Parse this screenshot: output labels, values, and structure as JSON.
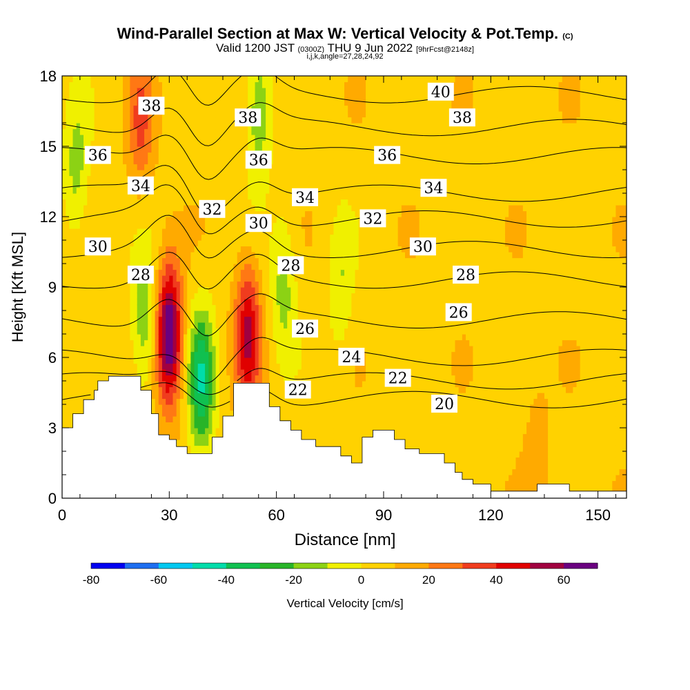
{
  "title": {
    "main": "Wind-Parallel Section at Max W: Vertical Velocity & Pot.Temp.",
    "main_tag": "(C)",
    "sub_pre": "Valid 1200 JST",
    "sub_utc": "(0300Z)",
    "sub_date": "THU 9 Jun 2022",
    "sub_fcst": "[9hrFcst@2148z]",
    "indices": "i,j,k,angle=27,28,24,92"
  },
  "chart_data": {
    "type": "heatmap",
    "xlabel": "Distance [nm]",
    "ylabel": "Height [Kft MSL]",
    "xlim": [
      0,
      158
    ],
    "ylim": [
      0,
      18
    ],
    "xticks": [
      0,
      30,
      60,
      90,
      120,
      150
    ],
    "yticks": [
      0,
      3,
      6,
      9,
      12,
      15,
      18
    ],
    "colorbar": {
      "label": "Vertical Velocity [cm/s]",
      "ticks": [
        -80,
        -60,
        -40,
        -20,
        0,
        20,
        40,
        60
      ],
      "levels": [
        -80,
        -70,
        -60,
        -50,
        -40,
        -30,
        -20,
        -10,
        0,
        10,
        20,
        30,
        40,
        50,
        60,
        70
      ],
      "colors": [
        "#0000f0",
        "#1e6ef0",
        "#00c8f0",
        "#00dcaa",
        "#10c050",
        "#28b428",
        "#8cd214",
        "#f0f000",
        "#ffd200",
        "#ffaa00",
        "#ff7814",
        "#f03c1e",
        "#e00000",
        "#a00040",
        "#6a0080"
      ]
    },
    "velocity_features": [
      {
        "x": 30,
        "z": 7.0,
        "w": 65
      },
      {
        "x": 39,
        "z": 5.0,
        "w": -45
      },
      {
        "x": 23,
        "z": 7.5,
        "w": -25
      },
      {
        "x": 52,
        "z": 7.0,
        "w": 45
      },
      {
        "x": 62,
        "z": 9.0,
        "w": -20
      },
      {
        "x": 4,
        "z": 14.0,
        "w": -20
      },
      {
        "x": 22,
        "z": 16.0,
        "w": 25
      },
      {
        "x": 55,
        "z": 16.5,
        "w": -25
      },
      {
        "x": 78,
        "z": 9.0,
        "w": -15
      },
      {
        "x": 133,
        "z": 2.0,
        "w": 10
      }
    ],
    "theta_contours": [
      {
        "value": 20,
        "base_z": 4.2
      },
      {
        "value": 22,
        "base_z": 5.0
      },
      {
        "value": 24,
        "base_z": 6.0
      },
      {
        "value": 26,
        "base_z": 7.6
      },
      {
        "value": 28,
        "base_z": 9.3
      },
      {
        "value": 30,
        "base_z": 10.6
      },
      {
        "value": 32,
        "base_z": 11.9
      },
      {
        "value": 34,
        "base_z": 13.0
      },
      {
        "value": 36,
        "base_z": 14.6
      },
      {
        "value": 38,
        "base_z": 15.8
      },
      {
        "value": 40,
        "base_z": 17.2
      }
    ],
    "contour_labels": [
      {
        "text": "38",
        "x": 25,
        "z": 16.7
      },
      {
        "text": "38",
        "x": 52,
        "z": 16.2
      },
      {
        "text": "40",
        "x": 106,
        "z": 17.3
      },
      {
        "text": "38",
        "x": 112,
        "z": 16.2
      },
      {
        "text": "36",
        "x": 10,
        "z": 14.6
      },
      {
        "text": "36",
        "x": 55,
        "z": 14.4
      },
      {
        "text": "36",
        "x": 91,
        "z": 14.6
      },
      {
        "text": "34",
        "x": 22,
        "z": 13.3
      },
      {
        "text": "34",
        "x": 68,
        "z": 12.8
      },
      {
        "text": "34",
        "x": 104,
        "z": 13.2
      },
      {
        "text": "32",
        "x": 42,
        "z": 12.3
      },
      {
        "text": "32",
        "x": 87,
        "z": 11.9
      },
      {
        "text": "30",
        "x": 55,
        "z": 11.7
      },
      {
        "text": "30",
        "x": 10,
        "z": 10.7
      },
      {
        "text": "30",
        "x": 101,
        "z": 10.7
      },
      {
        "text": "28",
        "x": 22,
        "z": 9.5
      },
      {
        "text": "28",
        "x": 64,
        "z": 9.9
      },
      {
        "text": "28",
        "x": 113,
        "z": 9.5
      },
      {
        "text": "26",
        "x": 68,
        "z": 7.2
      },
      {
        "text": "26",
        "x": 111,
        "z": 7.9
      },
      {
        "text": "24",
        "x": 81,
        "z": 6.0
      },
      {
        "text": "22",
        "x": 66,
        "z": 4.6
      },
      {
        "text": "22",
        "x": 94,
        "z": 5.1
      },
      {
        "text": "20",
        "x": 107,
        "z": 4.0
      }
    ],
    "terrain": [
      [
        0,
        3.0
      ],
      [
        3,
        3.0
      ],
      [
        3,
        3.6
      ],
      [
        6,
        3.6
      ],
      [
        6,
        4.2
      ],
      [
        9,
        4.2
      ],
      [
        9,
        4.6
      ],
      [
        10,
        4.6
      ],
      [
        10,
        5.0
      ],
      [
        13,
        5.0
      ],
      [
        13,
        5.2
      ],
      [
        22,
        5.2
      ],
      [
        22,
        4.6
      ],
      [
        25,
        4.6
      ],
      [
        25,
        3.6
      ],
      [
        27,
        3.6
      ],
      [
        27,
        2.7
      ],
      [
        30,
        2.7
      ],
      [
        30,
        2.5
      ],
      [
        32,
        2.5
      ],
      [
        32,
        2.2
      ],
      [
        35,
        2.2
      ],
      [
        35,
        1.9
      ],
      [
        42,
        1.9
      ],
      [
        42,
        2.6
      ],
      [
        45,
        2.6
      ],
      [
        45,
        3.5
      ],
      [
        48,
        3.5
      ],
      [
        48,
        4.9
      ],
      [
        58,
        4.9
      ],
      [
        58,
        3.9
      ],
      [
        61,
        3.9
      ],
      [
        61,
        3.3
      ],
      [
        64,
        3.3
      ],
      [
        64,
        2.9
      ],
      [
        67,
        2.9
      ],
      [
        67,
        2.5
      ],
      [
        71,
        2.5
      ],
      [
        71,
        2.2
      ],
      [
        78,
        2.2
      ],
      [
        78,
        1.8
      ],
      [
        81,
        1.8
      ],
      [
        81,
        1.5
      ],
      [
        84,
        1.5
      ],
      [
        84,
        2.6
      ],
      [
        87,
        2.6
      ],
      [
        87,
        2.9
      ],
      [
        93,
        2.9
      ],
      [
        93,
        2.5
      ],
      [
        96,
        2.5
      ],
      [
        96,
        2.1
      ],
      [
        100,
        2.1
      ],
      [
        100,
        1.9
      ],
      [
        107,
        1.9
      ],
      [
        107,
        1.5
      ],
      [
        110,
        1.5
      ],
      [
        110,
        1.1
      ],
      [
        112,
        1.1
      ],
      [
        112,
        0.8
      ],
      [
        115,
        0.8
      ],
      [
        115,
        0.6
      ],
      [
        120,
        0.6
      ],
      [
        120,
        0.3
      ],
      [
        133,
        0.3
      ],
      [
        133,
        0.6
      ],
      [
        142,
        0.6
      ],
      [
        142,
        0.3
      ],
      [
        158,
        0.3
      ]
    ]
  }
}
